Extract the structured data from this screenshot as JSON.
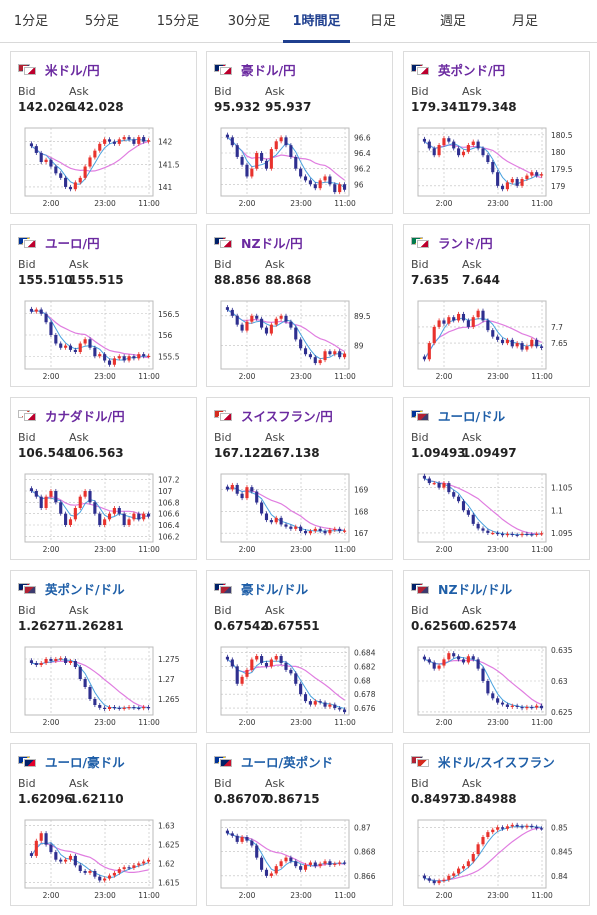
{
  "tabs": [
    {
      "label": "1分足",
      "active": false
    },
    {
      "label": "5分足",
      "active": false
    },
    {
      "label": "15分足",
      "active": false
    },
    {
      "label": "30分足",
      "active": false
    },
    {
      "label": "1時間足",
      "active": true
    },
    {
      "label": "日足",
      "active": false
    },
    {
      "label": "週足",
      "active": false
    },
    {
      "label": "月足",
      "active": false
    }
  ],
  "labels": {
    "bid": "Bid",
    "ask": "Ask"
  },
  "colors": {
    "up": "#e8322d",
    "down": "#2e2f8f",
    "ma_short": "#4aa3df",
    "ma_long": "#e07de0",
    "jpy_pair": "#6b2aa0",
    "usd_pair": "#1f5fa8"
  },
  "cards": [
    {
      "pair": "米ドル/円",
      "quote": "jpy",
      "flags": [
        "us",
        "jp"
      ],
      "bid": "142.026",
      "ask": "142.028",
      "chart_data": {
        "type": "candlestick",
        "x_ticks": [
          "2:00",
          "23:00",
          "11:00"
        ],
        "y_ticks": [
          142,
          141.5,
          141
        ],
        "ylim": [
          140.8,
          142.3
        ],
        "close": [
          141.9,
          141.75,
          141.55,
          141.6,
          141.45,
          141.3,
          141.2,
          141.0,
          140.95,
          141.1,
          141.2,
          141.45,
          141.65,
          141.8,
          141.95,
          142.05,
          142.0,
          141.95,
          142.05,
          142.1,
          142.05,
          141.95,
          142.1,
          142.0,
          142.03
        ]
      }
    },
    {
      "pair": "豪ドル/円",
      "quote": "jpy",
      "flags": [
        "au",
        "jp"
      ],
      "bid": "95.932",
      "ask": "95.937",
      "chart_data": {
        "type": "candlestick",
        "x_ticks": [
          "2:00",
          "23:00",
          "11:00"
        ],
        "y_ticks": [
          96.6,
          96.4,
          96.2,
          96
        ],
        "ylim": [
          95.85,
          96.72
        ],
        "close": [
          96.6,
          96.5,
          96.35,
          96.25,
          96.1,
          96.2,
          96.4,
          96.3,
          96.2,
          96.45,
          96.55,
          96.6,
          96.5,
          96.35,
          96.2,
          96.1,
          96.05,
          96.0,
          95.95,
          96.05,
          96.1,
          96.0,
          95.9,
          96.0,
          95.93
        ]
      }
    },
    {
      "pair": "英ポンド/円",
      "quote": "jpy",
      "flags": [
        "gb",
        "jp"
      ],
      "bid": "179.341",
      "ask": "179.348",
      "chart_data": {
        "type": "candlestick",
        "x_ticks": [
          "2:00",
          "23:00",
          "11:00"
        ],
        "y_ticks": [
          180.5,
          180,
          179.5,
          179
        ],
        "ylim": [
          178.7,
          180.7
        ],
        "close": [
          180.3,
          180.1,
          179.9,
          180.2,
          180.4,
          180.3,
          180.1,
          179.9,
          180.0,
          180.2,
          180.3,
          180.1,
          179.9,
          179.7,
          179.4,
          179.0,
          178.9,
          179.1,
          179.2,
          179.0,
          179.2,
          179.3,
          179.4,
          179.3,
          179.34
        ]
      }
    },
    {
      "pair": "ユーロ/円",
      "quote": "jpy",
      "flags": [
        "eu",
        "jp"
      ],
      "bid": "155.510",
      "ask": "155.515",
      "chart_data": {
        "type": "candlestick",
        "x_ticks": [
          "2:00",
          "23:00",
          "11:00"
        ],
        "y_ticks": [
          156.5,
          156,
          155.5
        ],
        "ylim": [
          155.2,
          156.8
        ],
        "close": [
          156.55,
          156.6,
          156.5,
          156.3,
          156.0,
          155.8,
          155.7,
          155.75,
          155.65,
          155.6,
          155.8,
          155.9,
          155.7,
          155.5,
          155.55,
          155.4,
          155.3,
          155.45,
          155.5,
          155.4,
          155.5,
          155.45,
          155.55,
          155.5,
          155.51
        ]
      }
    },
    {
      "pair": "NZドル/円",
      "quote": "jpy",
      "flags": [
        "nz",
        "jp"
      ],
      "bid": "88.856",
      "ask": "88.868",
      "chart_data": {
        "type": "candlestick",
        "x_ticks": [
          "2:00",
          "23:00",
          "11:00"
        ],
        "y_ticks": [
          89.5,
          89
        ],
        "ylim": [
          88.6,
          89.75
        ],
        "close": [
          89.6,
          89.5,
          89.35,
          89.25,
          89.4,
          89.5,
          89.45,
          89.3,
          89.2,
          89.35,
          89.45,
          89.5,
          89.4,
          89.3,
          89.1,
          88.95,
          88.85,
          88.8,
          88.7,
          88.75,
          88.9,
          88.85,
          88.9,
          88.8,
          88.86
        ]
      }
    },
    {
      "pair": "ランド/円",
      "quote": "jpy",
      "flags": [
        "za",
        "jp"
      ],
      "bid": "7.635",
      "ask": "7.644",
      "chart_data": {
        "type": "candlestick",
        "x_ticks": [
          "2:00",
          "23:00",
          "11:00"
        ],
        "y_ticks": [
          7.7,
          7.65
        ],
        "ylim": [
          7.57,
          7.78
        ],
        "close": [
          7.6,
          7.65,
          7.7,
          7.72,
          7.71,
          7.73,
          7.72,
          7.74,
          7.72,
          7.7,
          7.73,
          7.75,
          7.72,
          7.69,
          7.67,
          7.66,
          7.65,
          7.66,
          7.64,
          7.65,
          7.63,
          7.64,
          7.66,
          7.64,
          7.635
        ]
      }
    },
    {
      "pair": "カナダドル/円",
      "quote": "jpy",
      "flags": [
        "ca",
        "jp"
      ],
      "bid": "106.548",
      "ask": "106.563",
      "chart_data": {
        "type": "candlestick",
        "x_ticks": [
          "2:00",
          "23:00",
          "11:00"
        ],
        "y_ticks": [
          107.2,
          107,
          106.8,
          106.6,
          106.4,
          106.2
        ],
        "ylim": [
          106.1,
          107.3
        ],
        "close": [
          107.0,
          106.9,
          106.7,
          106.9,
          107.0,
          106.8,
          106.6,
          106.4,
          106.5,
          106.7,
          106.9,
          107.0,
          106.8,
          106.6,
          106.4,
          106.5,
          106.6,
          106.7,
          106.6,
          106.4,
          106.5,
          106.6,
          106.5,
          106.6,
          106.55
        ]
      }
    },
    {
      "pair": "スイスフラン/円",
      "quote": "jpy",
      "flags": [
        "ch",
        "jp"
      ],
      "bid": "167.122",
      "ask": "167.138",
      "chart_data": {
        "type": "candlestick",
        "x_ticks": [
          "2:00",
          "23:00",
          "11:00"
        ],
        "y_ticks": [
          169,
          168,
          167
        ],
        "ylim": [
          166.6,
          169.7
        ],
        "close": [
          169.0,
          169.2,
          168.8,
          168.6,
          169.1,
          168.9,
          168.4,
          167.9,
          167.6,
          167.5,
          167.7,
          167.4,
          167.3,
          167.2,
          167.3,
          167.1,
          167.0,
          167.1,
          167.2,
          167.1,
          167.0,
          167.15,
          167.2,
          167.1,
          167.12
        ]
      }
    },
    {
      "pair": "ユーロ/ドル",
      "quote": "usd",
      "flags": [
        "eu",
        "us"
      ],
      "bid": "1.09493",
      "ask": "1.09497",
      "chart_data": {
        "type": "candlestick",
        "x_ticks": [
          "2:00",
          "23:00",
          "11:00"
        ],
        "y_ticks": [
          1.105,
          1.1,
          1.095
        ],
        "ylim": [
          1.093,
          1.108
        ],
        "close": [
          1.107,
          1.106,
          1.106,
          1.105,
          1.106,
          1.104,
          1.103,
          1.102,
          1.1,
          1.099,
          1.097,
          1.096,
          1.0955,
          1.095,
          1.095,
          1.0948,
          1.0945,
          1.0948,
          1.0946,
          1.0945,
          1.0948,
          1.0947,
          1.0946,
          1.0948,
          1.09493
        ]
      }
    },
    {
      "pair": "英ポンド/ドル",
      "quote": "usd",
      "flags": [
        "gb",
        "us"
      ],
      "bid": "1.26271",
      "ask": "1.26281",
      "chart_data": {
        "type": "candlestick",
        "x_ticks": [
          "2:00",
          "23:00",
          "11:00"
        ],
        "y_ticks": [
          1.275,
          1.27,
          1.265
        ],
        "ylim": [
          1.261,
          1.278
        ],
        "close": [
          1.274,
          1.2735,
          1.274,
          1.275,
          1.2745,
          1.275,
          1.2752,
          1.274,
          1.2745,
          1.273,
          1.27,
          1.268,
          1.265,
          1.2635,
          1.2628,
          1.2625,
          1.263,
          1.2628,
          1.2626,
          1.2628,
          1.263,
          1.2628,
          1.2627,
          1.263,
          1.26271
        ]
      }
    },
    {
      "pair": "豪ドル/ドル",
      "quote": "usd",
      "flags": [
        "au",
        "us"
      ],
      "bid": "0.67542",
      "ask": "0.67551",
      "chart_data": {
        "type": "candlestick",
        "x_ticks": [
          "2:00",
          "23:00",
          "11:00"
        ],
        "y_ticks": [
          0.684,
          0.682,
          0.68,
          0.678,
          0.676
        ],
        "ylim": [
          0.675,
          0.6848
        ],
        "close": [
          0.683,
          0.682,
          0.6795,
          0.6805,
          0.6815,
          0.683,
          0.6835,
          0.6825,
          0.682,
          0.683,
          0.6835,
          0.6825,
          0.6815,
          0.681,
          0.6795,
          0.678,
          0.677,
          0.6765,
          0.677,
          0.6768,
          0.6762,
          0.6765,
          0.676,
          0.6758,
          0.67542
        ]
      }
    },
    {
      "pair": "NZドル/ドル",
      "quote": "usd",
      "flags": [
        "nz",
        "us"
      ],
      "bid": "0.62560",
      "ask": "0.62574",
      "chart_data": {
        "type": "candlestick",
        "x_ticks": [
          "2:00",
          "23:00",
          "11:00"
        ],
        "y_ticks": [
          0.635,
          0.63,
          0.625
        ],
        "ylim": [
          0.6245,
          0.6355
        ],
        "close": [
          0.6335,
          0.633,
          0.632,
          0.6325,
          0.6335,
          0.6345,
          0.634,
          0.6335,
          0.633,
          0.634,
          0.6335,
          0.632,
          0.63,
          0.628,
          0.6272,
          0.6265,
          0.6262,
          0.6258,
          0.626,
          0.6258,
          0.6256,
          0.6258,
          0.6257,
          0.626,
          0.6256
        ]
      }
    },
    {
      "pair": "ユーロ/豪ドル",
      "quote": "usd",
      "flags": [
        "eu",
        "au"
      ],
      "bid": "1.62096",
      "ask": "1.62110",
      "chart_data": {
        "type": "candlestick",
        "x_ticks": [
          "2:00",
          "23:00",
          "11:00"
        ],
        "y_ticks": [
          1.63,
          1.625,
          1.62,
          1.615
        ],
        "ylim": [
          1.6135,
          1.6315
        ],
        "close": [
          1.622,
          1.626,
          1.628,
          1.625,
          1.623,
          1.621,
          1.6205,
          1.621,
          1.622,
          1.6195,
          1.618,
          1.6175,
          1.618,
          1.6165,
          1.6155,
          1.616,
          1.6168,
          1.6175,
          1.6185,
          1.619,
          1.6188,
          1.6195,
          1.62,
          1.6205,
          1.62096
        ]
      }
    },
    {
      "pair": "ユーロ/英ポンド",
      "quote": "usd",
      "flags": [
        "eu",
        "gb"
      ],
      "bid": "0.86707",
      "ask": "0.86715",
      "chart_data": {
        "type": "candlestick",
        "x_ticks": [
          "2:00",
          "23:00",
          "11:00"
        ],
        "y_ticks": [
          0.87,
          0.868,
          0.866
        ],
        "ylim": [
          0.865,
          0.8706
        ],
        "close": [
          0.8695,
          0.8693,
          0.8688,
          0.8692,
          0.8689,
          0.8685,
          0.8675,
          0.8665,
          0.866,
          0.8662,
          0.8668,
          0.8672,
          0.8675,
          0.8672,
          0.8668,
          0.8665,
          0.8669,
          0.8671,
          0.8668,
          0.867,
          0.8672,
          0.8669,
          0.867,
          0.8671,
          0.86707
        ]
      }
    },
    {
      "pair": "米ドル/スイスフラン",
      "quote": "usd",
      "flags": [
        "us",
        "ch"
      ],
      "bid": "0.84973",
      "ask": "0.84988",
      "chart_data": {
        "type": "candlestick",
        "x_ticks": [
          "2:00",
          "23:00",
          "11:00"
        ],
        "y_ticks": [
          0.85,
          0.845,
          0.84
        ],
        "ylim": [
          0.8375,
          0.8515
        ],
        "close": [
          0.8395,
          0.839,
          0.8385,
          0.839,
          0.8392,
          0.84,
          0.8405,
          0.8415,
          0.842,
          0.843,
          0.8445,
          0.8465,
          0.848,
          0.849,
          0.8495,
          0.85,
          0.8497,
          0.8502,
          0.8505,
          0.8502,
          0.85,
          0.8503,
          0.8501,
          0.8498,
          0.84973
        ]
      }
    }
  ]
}
